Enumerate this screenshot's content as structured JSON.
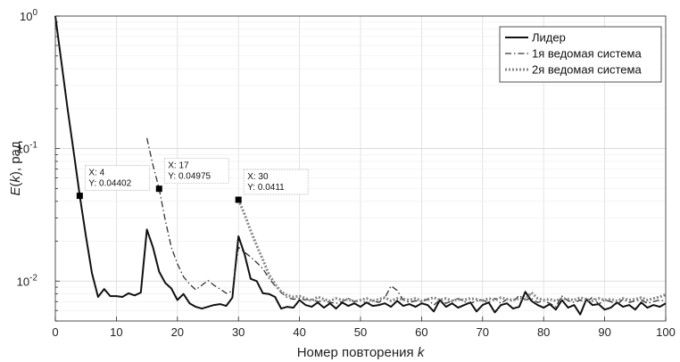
{
  "chart_data": {
    "type": "line",
    "title": "",
    "xlabel": "Номер повторения k",
    "ylabel": "E(k), рад",
    "xlim": [
      0,
      100
    ],
    "ylim": [
      0.005,
      1
    ],
    "yscale": "log",
    "grid": true,
    "legend_position": "top-right",
    "x_ticks": [
      0,
      10,
      20,
      30,
      40,
      50,
      60,
      70,
      80,
      90,
      100
    ],
    "series": [
      {
        "name": "Лидер",
        "style": "solid",
        "color": "#111111",
        "x": [
          0,
          1,
          2,
          3,
          4,
          5,
          6,
          7,
          8,
          9,
          10,
          11,
          12,
          13,
          14,
          15,
          16,
          17,
          18,
          19,
          20,
          21,
          22,
          23,
          24,
          25,
          26,
          27,
          28,
          29,
          30,
          31,
          32,
          33,
          34,
          35,
          36,
          37,
          38,
          39,
          40,
          41,
          42,
          43,
          44,
          45,
          46,
          47,
          48,
          49,
          50,
          51,
          52,
          53,
          54,
          55,
          56,
          57,
          58,
          59,
          60,
          61,
          62,
          63,
          64,
          65,
          66,
          67,
          68,
          69,
          70,
          71,
          72,
          73,
          74,
          75,
          76,
          77,
          78,
          79,
          80,
          81,
          82,
          83,
          84,
          85,
          86,
          87,
          88,
          89,
          90,
          91,
          92,
          93,
          94,
          95,
          96,
          97,
          98,
          99,
          100
        ],
        "y": [
          1.0,
          0.45,
          0.2,
          0.095,
          0.044,
          0.022,
          0.0115,
          0.0076,
          0.0087,
          0.0077,
          0.0077,
          0.0076,
          0.0081,
          0.0078,
          0.0082,
          0.0245,
          0.018,
          0.0118,
          0.0097,
          0.0088,
          0.0072,
          0.008,
          0.0068,
          0.0064,
          0.0062,
          0.0064,
          0.0066,
          0.0067,
          0.0065,
          0.0075,
          0.0218,
          0.016,
          0.0104,
          0.01,
          0.0081,
          0.008,
          0.0076,
          0.0062,
          0.0064,
          0.0063,
          0.0072,
          0.0066,
          0.0064,
          0.0069,
          0.0063,
          0.0068,
          0.0062,
          0.0069,
          0.0065,
          0.0068,
          0.0064,
          0.0069,
          0.0065,
          0.0066,
          0.0068,
          0.0064,
          0.0071,
          0.0065,
          0.0067,
          0.0064,
          0.0068,
          0.0066,
          0.0059,
          0.0072,
          0.0064,
          0.0068,
          0.0063,
          0.0066,
          0.0069,
          0.0059,
          0.0066,
          0.0069,
          0.0058,
          0.0066,
          0.0068,
          0.0062,
          0.0064,
          0.0083,
          0.0071,
          0.0066,
          0.0063,
          0.0067,
          0.0061,
          0.0072,
          0.0063,
          0.0066,
          0.0056,
          0.0073,
          0.0066,
          0.0067,
          0.0061,
          0.0063,
          0.0069,
          0.0064,
          0.0066,
          0.0061,
          0.0069,
          0.0063,
          0.0066,
          0.0064,
          0.0068
        ]
      },
      {
        "name": "1я ведомая система",
        "style": "dashdot",
        "color": "#333333",
        "x": [
          15,
          16,
          17,
          18,
          19,
          20,
          21,
          22,
          23,
          24,
          25,
          26,
          27,
          28,
          29,
          30,
          31,
          32,
          33,
          34,
          35,
          36,
          37,
          38,
          39,
          40,
          41,
          42,
          43,
          44,
          45,
          46,
          47,
          48,
          49,
          50,
          51,
          52,
          53,
          54,
          55,
          56,
          57,
          58,
          59,
          60,
          61,
          62,
          63,
          64,
          65,
          66,
          67,
          68,
          69,
          70,
          71,
          72,
          73,
          74,
          75,
          76,
          77,
          78,
          79,
          80,
          81,
          82,
          83,
          84,
          85,
          86,
          87,
          88,
          89,
          90,
          91,
          92,
          93,
          94,
          95,
          96,
          97,
          98,
          99,
          100
        ],
        "y": [
          0.12,
          0.075,
          0.0498,
          0.029,
          0.018,
          0.0135,
          0.0108,
          0.0095,
          0.0086,
          0.0093,
          0.0101,
          0.0093,
          0.0087,
          0.0081,
          0.0084,
          0.018,
          0.0165,
          0.0152,
          0.0138,
          0.0124,
          0.0105,
          0.0092,
          0.0082,
          0.0075,
          0.0073,
          0.0074,
          0.0072,
          0.0073,
          0.007,
          0.0071,
          0.0069,
          0.0068,
          0.007,
          0.0074,
          0.007,
          0.0072,
          0.0068,
          0.0071,
          0.0069,
          0.0075,
          0.0092,
          0.0085,
          0.0072,
          0.0069,
          0.0071,
          0.007,
          0.0073,
          0.0066,
          0.0072,
          0.0068,
          0.0071,
          0.0074,
          0.007,
          0.0068,
          0.0071,
          0.0072,
          0.0069,
          0.0074,
          0.0068,
          0.0073,
          0.007,
          0.0078,
          0.0072,
          0.0074,
          0.0069,
          0.0071,
          0.0068,
          0.0064,
          0.0077,
          0.0071,
          0.0069,
          0.0072,
          0.0068,
          0.0076,
          0.0067,
          0.0072,
          0.007,
          0.0066,
          0.0073,
          0.0069,
          0.0071,
          0.0072,
          0.0068,
          0.007,
          0.0072,
          0.0071
        ]
      },
      {
        "name": "2я ведомая система",
        "style": "dotted",
        "color": "#888888",
        "x": [
          30,
          31,
          32,
          33,
          34,
          35,
          36,
          37,
          38,
          39,
          40,
          41,
          42,
          43,
          44,
          45,
          46,
          47,
          48,
          49,
          50,
          51,
          52,
          53,
          54,
          55,
          56,
          57,
          58,
          59,
          60,
          61,
          62,
          63,
          64,
          65,
          66,
          67,
          68,
          69,
          70,
          71,
          72,
          73,
          74,
          75,
          76,
          77,
          78,
          79,
          80,
          81,
          82,
          83,
          84,
          85,
          86,
          87,
          88,
          89,
          90,
          91,
          92,
          93,
          94,
          95,
          96,
          97,
          98,
          99,
          100
        ],
        "y": [
          0.0411,
          0.032,
          0.024,
          0.0185,
          0.0145,
          0.0112,
          0.0095,
          0.0083,
          0.0078,
          0.0076,
          0.0077,
          0.0074,
          0.0071,
          0.0076,
          0.0073,
          0.0071,
          0.0074,
          0.0072,
          0.0073,
          0.007,
          0.0072,
          0.0074,
          0.0071,
          0.0073,
          0.0075,
          0.0071,
          0.0074,
          0.0073,
          0.0072,
          0.0074,
          0.0071,
          0.0073,
          0.0075,
          0.0072,
          0.0074,
          0.0071,
          0.0073,
          0.0072,
          0.0074,
          0.0073,
          0.0071,
          0.0074,
          0.0072,
          0.0075,
          0.0073,
          0.0072,
          0.0074,
          0.0073,
          0.0082,
          0.0074,
          0.0072,
          0.0073,
          0.0071,
          0.0074,
          0.0073,
          0.0072,
          0.0075,
          0.0073,
          0.0071,
          0.0074,
          0.0072,
          0.0073,
          0.0071,
          0.0074,
          0.0072,
          0.0073,
          0.0075,
          0.0072,
          0.0074,
          0.0076,
          0.0079
        ]
      }
    ],
    "datatips": [
      {
        "series": "Лидер",
        "x": 4,
        "y": 0.04402,
        "line1": "X: 4",
        "line2": "Y: 0.04402"
      },
      {
        "series": "1я ведомая система",
        "x": 17,
        "y": 0.04975,
        "line1": "X: 17",
        "line2": "Y: 0.04975"
      },
      {
        "series": "2я ведомая система",
        "x": 30,
        "y": 0.0411,
        "line1": "X: 30",
        "line2": "Y: 0.0411"
      }
    ],
    "y_major_ticks": [
      {
        "value": 1,
        "mantissa": "10",
        "exponent": "0"
      },
      {
        "value": 0.1,
        "mantissa": "10",
        "exponent": "-1"
      },
      {
        "value": 0.01,
        "mantissa": "10",
        "exponent": "-2"
      }
    ]
  }
}
